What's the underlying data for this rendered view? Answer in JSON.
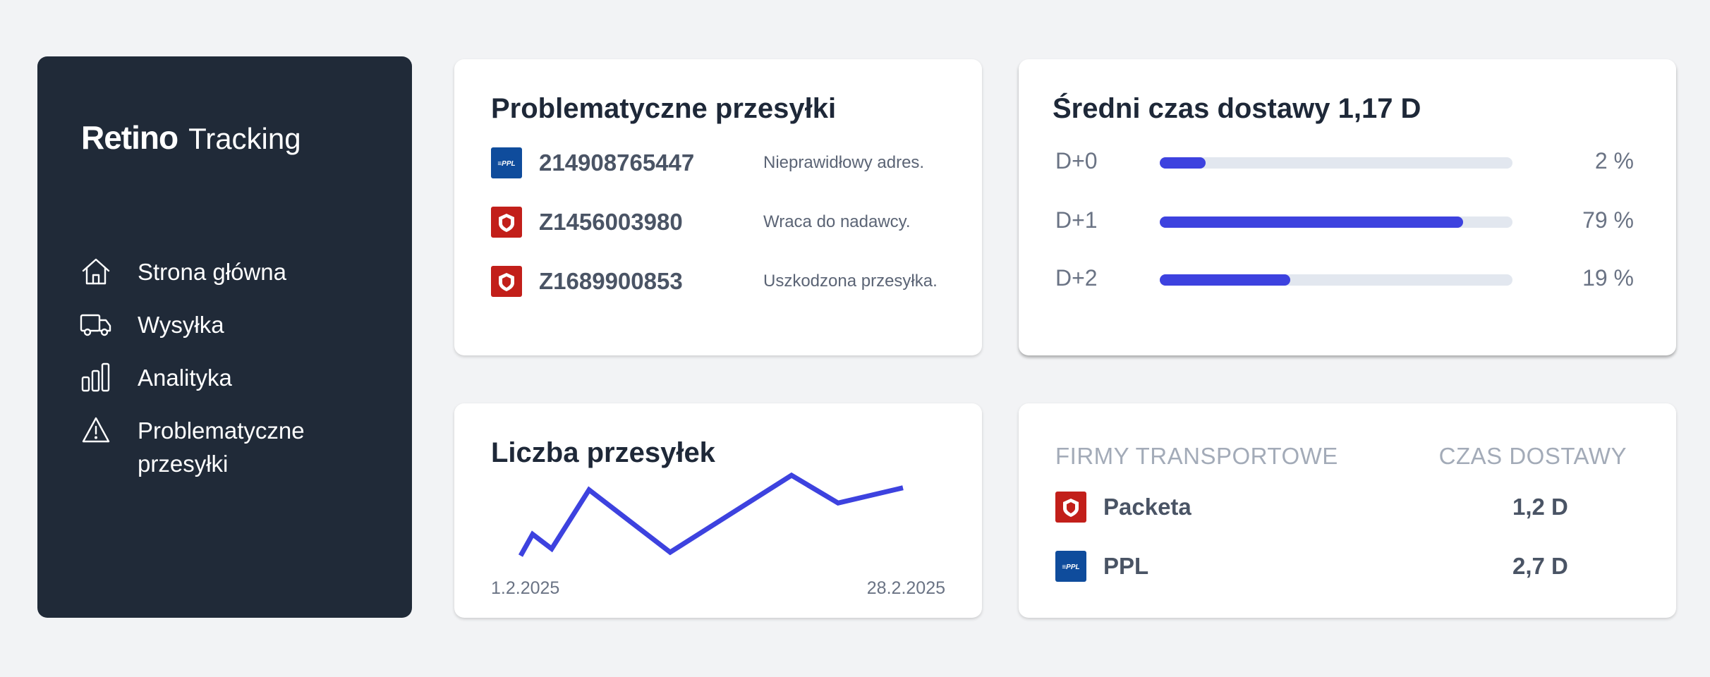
{
  "brand": {
    "logo_text": "Retino",
    "subtitle": "Tracking"
  },
  "sidebar": {
    "items": [
      {
        "icon": "home-icon",
        "label": "Strona główna"
      },
      {
        "icon": "truck-icon",
        "label": "Wysyłka"
      },
      {
        "icon": "bar-chart-icon",
        "label": "Analityka"
      },
      {
        "icon": "warning-icon",
        "label": "Problematyczne przesyłki"
      }
    ]
  },
  "problems": {
    "title": "Problematyczne przesyłki",
    "rows": [
      {
        "carrier_logo": "ppl-logo",
        "logo_text": "≡PPL",
        "code": "214908765447",
        "message": "Nieprawidłowy adres."
      },
      {
        "carrier_logo": "packeta-logo",
        "code": "Z1456003980",
        "message": "Wraca do nadawcy."
      },
      {
        "carrier_logo": "packeta-logo",
        "code": "Z1689900853",
        "message": "Uszkodzona przesyłka."
      }
    ]
  },
  "delivery": {
    "title": "Średni czas dostawy 1,17 D",
    "rows": [
      {
        "label": "D+0",
        "percent": 13,
        "value": "2 %"
      },
      {
        "label": "D+1",
        "percent": 86,
        "value": "79 %"
      },
      {
        "label": "D+2",
        "percent": 37,
        "value": "19 %"
      }
    ]
  },
  "count": {
    "title": "Liczba przesyłek",
    "start_label": "1.2.2025",
    "end_label": "28.2.2025",
    "series_relative": [
      0.02,
      0.33,
      0.12,
      0.97,
      0.07,
      1.18,
      0.78,
      1.0
    ]
  },
  "carriers": {
    "header_company": "FIRMY TRANSPORTOWE",
    "header_time": "CZAS DOSTAWY",
    "rows": [
      {
        "carrier_logo": "packeta-logo",
        "name": "Packeta",
        "time": "1,2 D"
      },
      {
        "carrier_logo": "ppl-logo",
        "logo_text": "≡PPL",
        "name": "PPL",
        "time": "2,7 D"
      }
    ]
  },
  "colors": {
    "sidebar_bg": "#202a38",
    "accent": "#3d42df",
    "ppl_blue": "#0f4c9c",
    "packeta_red": "#c21f1a"
  }
}
